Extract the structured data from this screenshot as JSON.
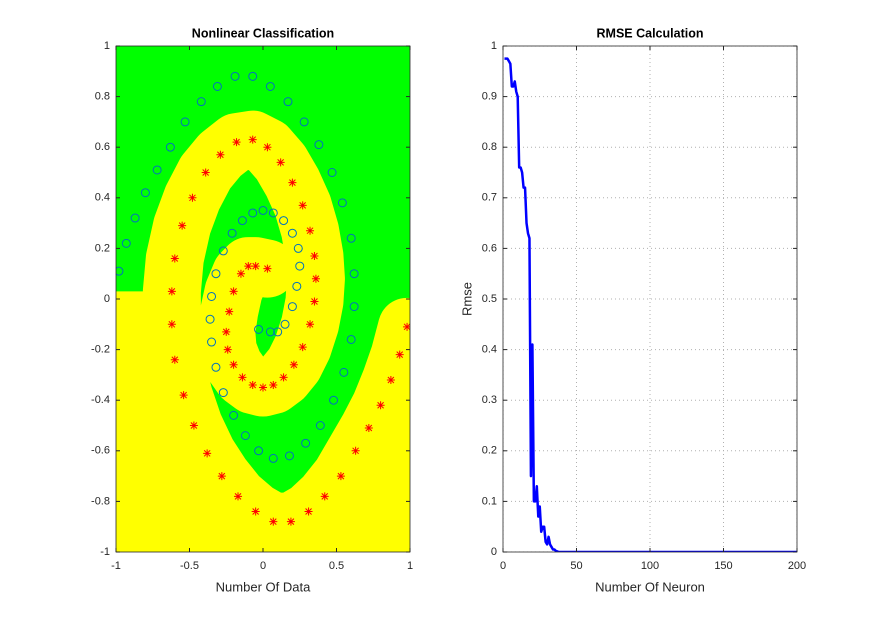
{
  "chart_data": [
    {
      "type": "scatter",
      "title": "Nonlinear Classification",
      "x_label": "Number Of Data",
      "xlim": [
        -1,
        1
      ],
      "ylim": [
        -1,
        1
      ],
      "xticks": [
        -1,
        -0.5,
        0,
        0.5,
        1
      ],
      "yticks": [
        -1,
        -0.8,
        -0.6,
        -0.4,
        -0.2,
        0,
        0.2,
        0.4,
        0.6,
        0.8,
        1
      ],
      "grid": false,
      "regions": [
        "#00ff00",
        "#ffff00"
      ],
      "series": [
        {
          "color": "#0072bd",
          "marker": "o",
          "x": [
            -0.03,
            0.05,
            0.1,
            0.15,
            0.2,
            0.23,
            0.25,
            0.24,
            0.2,
            0.14,
            0.07,
            0,
            -0.07,
            -0.14,
            -0.21,
            -0.27,
            -0.32,
            -0.35,
            -0.36,
            -0.35,
            -0.32,
            -0.27,
            -0.2,
            -0.12,
            -0.03,
            0.07,
            0.18,
            0.29,
            0.39,
            0.48,
            0.55,
            0.6,
            0.62,
            0.62,
            0.6,
            0.54,
            0.47,
            0.38,
            0.28,
            0.17,
            0.05,
            -0.07,
            -0.19,
            -0.31,
            -0.42,
            -0.53,
            -0.63,
            -0.72,
            -0.8,
            -0.87,
            -0.93,
            -0.98
          ],
          "values": [
            -0.12,
            -0.13,
            -0.13,
            -0.1,
            -0.03,
            0.05,
            0.13,
            0.2,
            0.26,
            0.31,
            0.34,
            0.35,
            0.34,
            0.31,
            0.26,
            0.19,
            0.1,
            0.01,
            -0.08,
            -0.17,
            -0.27,
            -0.37,
            -0.46,
            -0.54,
            -0.6,
            -0.63,
            -0.62,
            -0.57,
            -0.5,
            -0.4,
            -0.29,
            -0.16,
            -0.03,
            0.1,
            0.24,
            0.38,
            0.5,
            0.61,
            0.7,
            0.78,
            0.84,
            0.88,
            0.88,
            0.84,
            0.78,
            0.7,
            0.6,
            0.51,
            0.42,
            0.32,
            0.22,
            0.11
          ]
        },
        {
          "color": "#ff0000",
          "marker": "*",
          "x": [
            0.03,
            -0.05,
            -0.1,
            -0.15,
            -0.2,
            -0.23,
            -0.25,
            -0.24,
            -0.2,
            -0.14,
            -0.07,
            0,
            0.07,
            0.14,
            0.21,
            0.27,
            0.32,
            0.35,
            0.36,
            0.35,
            0.32,
            0.27,
            0.2,
            0.12,
            0.03,
            -0.07,
            -0.18,
            -0.29,
            -0.39,
            -0.48,
            -0.55,
            -0.6,
            -0.62,
            -0.62,
            -0.6,
            -0.54,
            -0.47,
            -0.38,
            -0.28,
            -0.17,
            -0.05,
            0.07,
            0.19,
            0.31,
            0.42,
            0.53,
            0.63,
            0.72,
            0.8,
            0.87,
            0.93,
            0.98
          ],
          "values": [
            0.12,
            0.13,
            0.13,
            0.1,
            0.03,
            -0.05,
            -0.13,
            -0.2,
            -0.26,
            -0.31,
            -0.34,
            -0.35,
            -0.34,
            -0.31,
            -0.26,
            -0.19,
            -0.1,
            -0.01,
            0.08,
            0.17,
            0.27,
            0.37,
            0.46,
            0.54,
            0.6,
            0.63,
            0.62,
            0.57,
            0.5,
            0.4,
            0.29,
            0.16,
            0.03,
            -0.1,
            -0.24,
            -0.38,
            -0.5,
            -0.61,
            -0.7,
            -0.78,
            -0.84,
            -0.88,
            -0.88,
            -0.84,
            -0.78,
            -0.7,
            -0.6,
            -0.51,
            -0.42,
            -0.32,
            -0.22,
            -0.11
          ]
        }
      ]
    },
    {
      "type": "line",
      "title": "RMSE Calculation",
      "x_label": "Number Of Neuron",
      "y_label": "Rmse",
      "xlim": [
        0,
        200
      ],
      "ylim": [
        0,
        1
      ],
      "xticks": [
        0,
        50,
        100,
        150,
        200
      ],
      "yticks": [
        0,
        0.1,
        0.2,
        0.3,
        0.4,
        0.5,
        0.6,
        0.7,
        0.8,
        0.9,
        1
      ],
      "grid": true,
      "x": [
        1,
        2,
        3,
        4,
        5,
        6,
        7,
        8,
        9,
        10,
        11,
        12,
        13,
        14,
        15,
        16,
        17,
        18,
        19,
        20,
        21,
        22,
        23,
        24,
        25,
        26,
        27,
        28,
        29,
        30,
        31,
        32,
        33,
        34,
        35,
        36,
        37,
        38,
        40,
        200
      ],
      "series": [
        {
          "color": "#0000ff",
          "values": [
            0.975,
            0.975,
            0.975,
            0.97,
            0.965,
            0.92,
            0.92,
            0.93,
            0.91,
            0.9,
            0.76,
            0.76,
            0.75,
            0.72,
            0.72,
            0.65,
            0.63,
            0.62,
            0.15,
            0.41,
            0.1,
            0.1,
            0.13,
            0.07,
            0.09,
            0.04,
            0.05,
            0.05,
            0.02,
            0.015,
            0.03,
            0.015,
            0.01,
            0.005,
            0.005,
            0.002,
            0.001,
            0,
            0,
            0
          ]
        }
      ]
    }
  ]
}
